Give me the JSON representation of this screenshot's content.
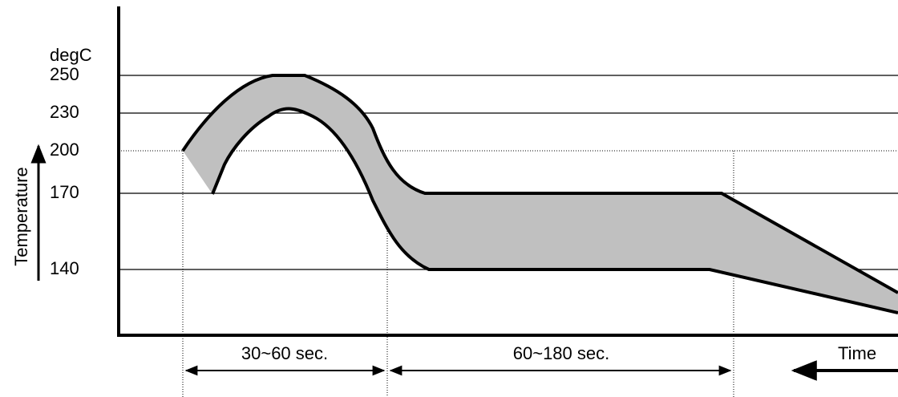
{
  "unit": "degC",
  "temperatures": [
    "250",
    "230",
    "200",
    "170",
    "140"
  ],
  "y_axis_label": "Temperature",
  "x_axis_label": "Time",
  "intervals": [
    "30~60 sec.",
    "60~180 sec."
  ]
}
